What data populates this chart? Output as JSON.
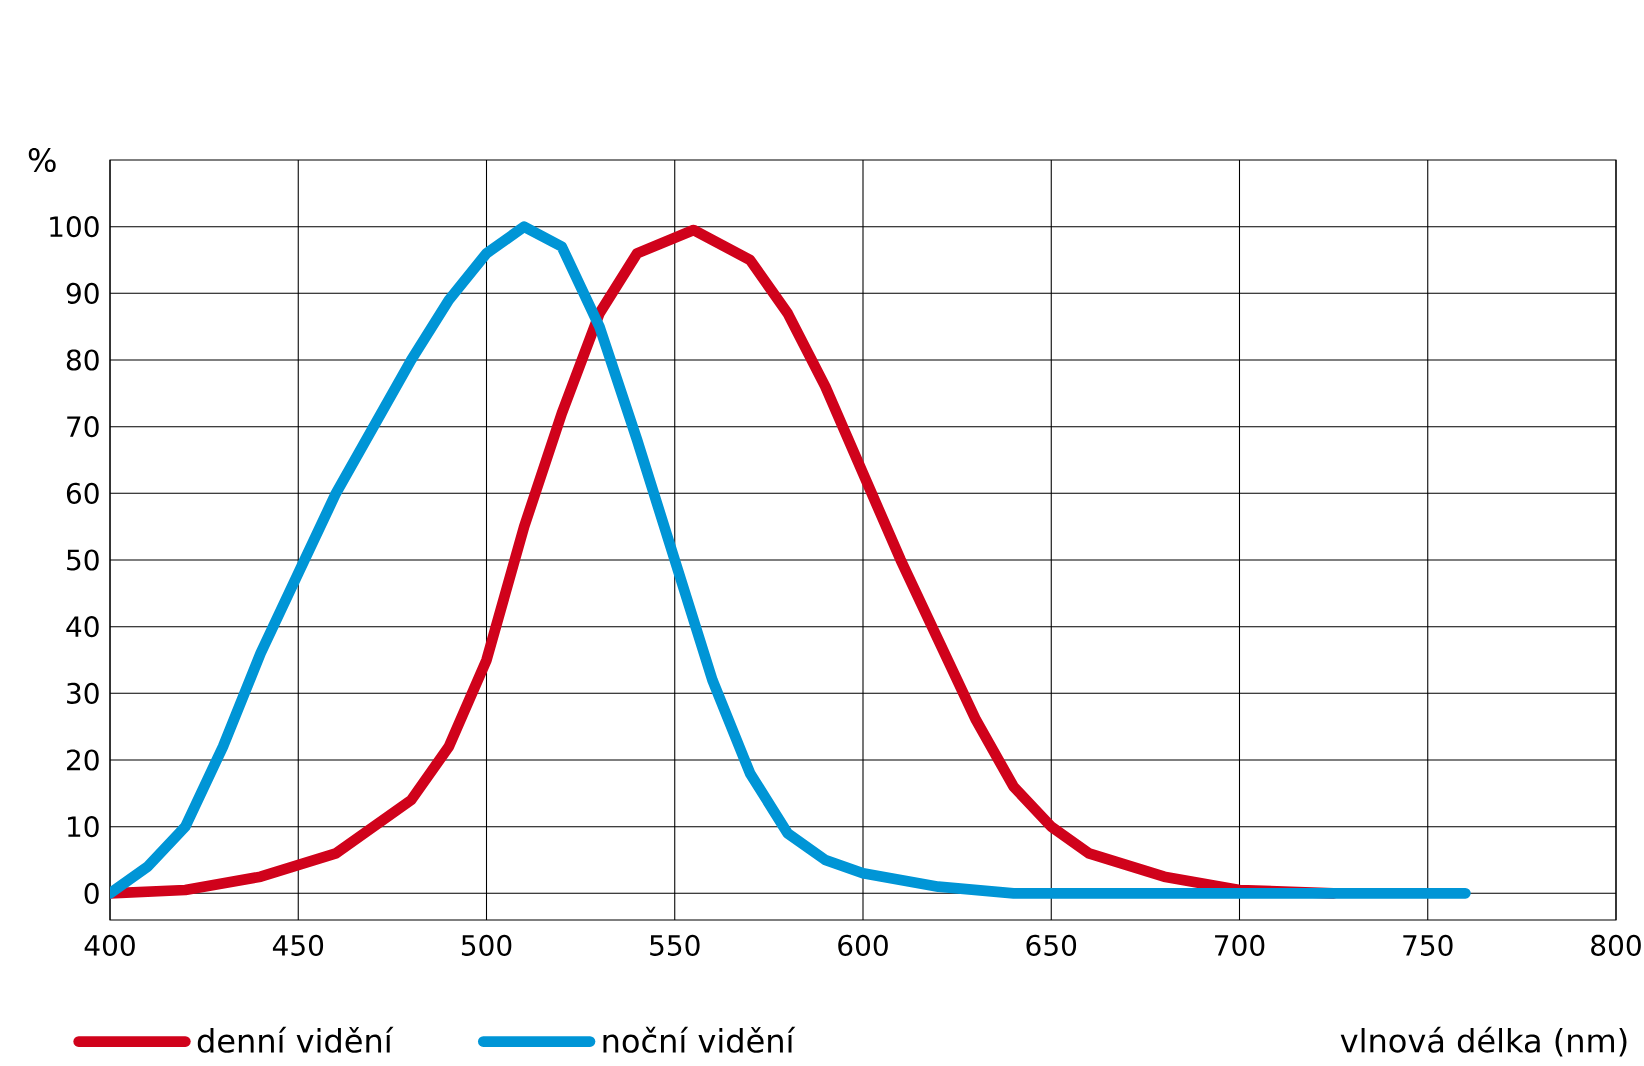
{
  "chart_data": {
    "type": "line",
    "xlabel": "vlnová délka (nm)",
    "ylabel": "%",
    "xlim": [
      400,
      800
    ],
    "xticks": [
      400,
      450,
      500,
      550,
      600,
      650,
      700,
      750,
      800
    ],
    "ylim": [
      -4,
      110
    ],
    "yticks": [
      0,
      10,
      20,
      30,
      40,
      50,
      60,
      70,
      80,
      90,
      100
    ],
    "grid": true,
    "legend": "bottom",
    "marker": "none",
    "line_style": "solid",
    "series": [
      {
        "name": "denní vidění",
        "color": "#d0021b",
        "x": [
          400,
          420,
          440,
          460,
          480,
          490,
          500,
          510,
          520,
          530,
          540,
          555,
          570,
          580,
          590,
          600,
          610,
          620,
          630,
          640,
          650,
          660,
          680,
          700,
          725
        ],
        "values": [
          0,
          0.5,
          2.5,
          6,
          14,
          22,
          35,
          55,
          72,
          87,
          96,
          99.5,
          95,
          87,
          76,
          63,
          50,
          38,
          26,
          16,
          10,
          6,
          2.5,
          0.5,
          0
        ]
      },
      {
        "name": "noční vidění",
        "color": "#0095d6",
        "x": [
          400,
          410,
          420,
          430,
          440,
          450,
          460,
          470,
          480,
          490,
          500,
          510,
          520,
          530,
          540,
          550,
          560,
          570,
          580,
          590,
          600,
          620,
          640,
          660,
          700,
          760
        ],
        "values": [
          0,
          4,
          10,
          22,
          36,
          48,
          60,
          70,
          80,
          89,
          96,
          100,
          97,
          85,
          68,
          50,
          32,
          18,
          9,
          5,
          3,
          1,
          0,
          0,
          0,
          0
        ]
      }
    ]
  }
}
